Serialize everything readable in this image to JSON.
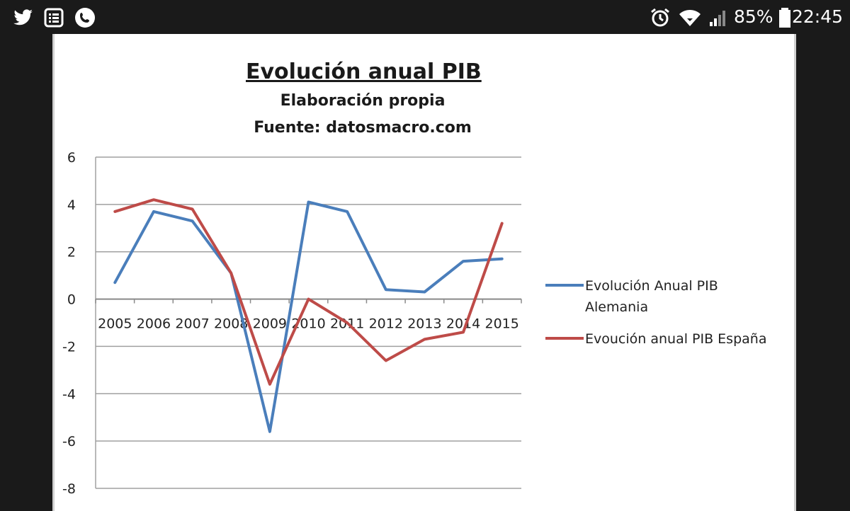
{
  "status_bar": {
    "battery_percent": "85%",
    "time": "22:45",
    "left_icons": [
      "twitter-icon",
      "notes-icon",
      "phone-icon"
    ],
    "right_icons": [
      "alarm-icon",
      "wifi-icon",
      "signal-icon",
      "battery-icon"
    ]
  },
  "chart_data": {
    "type": "line",
    "title": "Evolución anual PIB",
    "subtitle": "Elaboración propia",
    "source": "Fuente: datosmacro.com",
    "categories": [
      "2005",
      "2006",
      "2007",
      "2008",
      "2009",
      "2010",
      "2011",
      "2012",
      "2013",
      "2014",
      "2015"
    ],
    "ylim": [
      -8,
      6
    ],
    "yticks": [
      6,
      4,
      2,
      0,
      -2,
      -4,
      -6,
      -8
    ],
    "grid": true,
    "legend_position": "right",
    "series": [
      {
        "name": "Evolución Anual PIB Alemania",
        "name_lines": [
          "Evolución Anual PIB",
          "Alemania"
        ],
        "color": "#4a7ebb",
        "values": [
          0.7,
          3.7,
          3.3,
          1.1,
          -5.6,
          4.1,
          3.7,
          0.4,
          0.3,
          1.6,
          1.7
        ]
      },
      {
        "name": "Evoución anual PIB España",
        "name_lines": [
          "Evoución anual PIB España"
        ],
        "color": "#be4b48",
        "values": [
          3.7,
          4.2,
          3.8,
          1.1,
          -3.6,
          0.0,
          -1.0,
          -2.6,
          -1.7,
          -1.4,
          3.2
        ]
      }
    ]
  }
}
